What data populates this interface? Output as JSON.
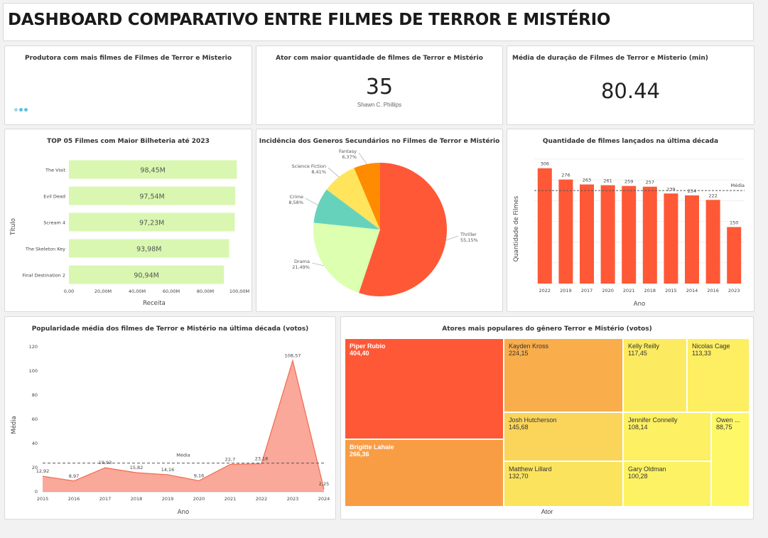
{
  "page": {
    "title": "DASHBOARD COMPARATIVO ENTRE FILMES DE TERROR E MISTÉRIO"
  },
  "kpis": {
    "producer": {
      "title": "Produtora com mais filmes de Filmes de Terror e Misterio"
    },
    "actor": {
      "title": "Ator com maior quantidade de filmes de Terror e Mistério",
      "value": "35",
      "subtitle": "Shawn C. Phillips"
    },
    "duration": {
      "title": "Média de duração de Filmes de Terror e Misterio (min)",
      "value": "80.44"
    }
  },
  "chart_data": [
    {
      "id": "top5",
      "type": "bar",
      "orientation": "horizontal",
      "title": "TOP 05 Filmes com Maior Bilheteria até 2023",
      "xlabel": "Receita",
      "ylabel": "Título",
      "categories": [
        "The Visit",
        "Evil Dead",
        "Scream 4",
        "The Skeleton Key",
        "Final Destination 2"
      ],
      "values": [
        98.45,
        97.54,
        97.23,
        93.98,
        90.94
      ],
      "value_labels": [
        "98,45M",
        "97,54M",
        "97,23M",
        "93,98M",
        "90,94M"
      ],
      "xticks": [
        "0,00",
        "20,00M",
        "40,00M",
        "60,00M",
        "80,00M",
        "100,00M"
      ],
      "xlim": [
        0,
        100
      ],
      "color": "#d9f7b0"
    },
    {
      "id": "genres",
      "type": "pie",
      "title": "Incidência dos Generos Secundários no Filmes de Terror e Mistério",
      "slices": [
        {
          "label": "Thriller",
          "value": 55.15,
          "pct": "55,15%",
          "color": "#fe5836"
        },
        {
          "label": "Drama",
          "value": 21.49,
          "pct": "21,49%",
          "color": "#dcffb0"
        },
        {
          "label": "Crime",
          "value": 8.58,
          "pct": "8,58%",
          "color": "#66d2bc"
        },
        {
          "label": "Science Fiction",
          "value": 8.41,
          "pct": "8,41%",
          "color": "#ffe45c"
        },
        {
          "label": "Fantasy",
          "value": 6.37,
          "pct": "6,37%",
          "color": "#ff8c00"
        }
      ]
    },
    {
      "id": "decade",
      "type": "bar",
      "title": "Quantidade de filmes lançados na última década",
      "xlabel": "Ano",
      "ylabel": "Quantidade de Filmes",
      "categories": [
        "2022",
        "2019",
        "2017",
        "2020",
        "2021",
        "2018",
        "2015",
        "2014",
        "2016",
        "2023"
      ],
      "values": [
        306,
        276,
        263,
        261,
        259,
        257,
        239,
        234,
        222,
        150
      ],
      "reference": {
        "label": "Média",
        "value": 246.7
      },
      "ylim": [
        0,
        330
      ],
      "color": "#fe5836"
    },
    {
      "id": "popularity",
      "type": "area",
      "title": "Popularidade média dos filmes de Terror e Mistério na última década (votos)",
      "xlabel": "Ano",
      "ylabel": "Média",
      "x": [
        "2015",
        "2016",
        "2017",
        "2018",
        "2019",
        "2020",
        "2021",
        "2022",
        "2023",
        "2024"
      ],
      "values": [
        12.92,
        8.97,
        19.93,
        15.82,
        14.16,
        9.16,
        22.7,
        23.18,
        108.57,
        2.25
      ],
      "value_labels": [
        "12,92",
        "8,97",
        "19,93",
        "15,82",
        "14,16",
        "9,16",
        "22,7",
        "23,18",
        "108,57",
        "2,25"
      ],
      "yticks": [
        "0",
        "20",
        "40",
        "60",
        "80",
        "100",
        "120"
      ],
      "ylim": [
        0,
        120
      ],
      "reference": {
        "label": "Média",
        "value": 23.77
      },
      "fill": "#f9a89a",
      "stroke": "#f26a4f"
    },
    {
      "id": "actors",
      "type": "treemap",
      "title": "Atores mais populares do gênero Terror e Mistério (votos)",
      "xlabel": "Ator",
      "items": [
        {
          "name": "Piper Rubio",
          "value": 404.4,
          "label": "404,40",
          "color": "#fe5836",
          "tone": "dark"
        },
        {
          "name": "Brigitte Lahaie",
          "value": 266.36,
          "label": "266,36",
          "color": "#f99d45",
          "tone": "dark"
        },
        {
          "name": "Kayden Kross",
          "value": 224.15,
          "label": "224,15",
          "color": "#f9ad4b",
          "tone": "light"
        },
        {
          "name": "Josh Hutcherson",
          "value": 145.68,
          "label": "145,68",
          "color": "#fbd55a",
          "tone": "light"
        },
        {
          "name": "Matthew Lillard",
          "value": 132.7,
          "label": "132,70",
          "color": "#fce35e",
          "tone": "light"
        },
        {
          "name": "Kelly Reilly",
          "value": 117.45,
          "label": "117,45",
          "color": "#fceb60",
          "tone": "light"
        },
        {
          "name": "Nicolas Cage",
          "value": 113.33,
          "label": "113,33",
          "color": "#fdee62",
          "tone": "light"
        },
        {
          "name": "Jennifer Connelly",
          "value": 108.14,
          "label": "108,14",
          "color": "#fdf063",
          "tone": "light"
        },
        {
          "name": "Gary Oldman",
          "value": 100.28,
          "label": "100,28",
          "color": "#fdf264",
          "tone": "light"
        },
        {
          "name": "Owen ...",
          "value": 88.75,
          "label": "88,75",
          "color": "#fef767",
          "tone": "light"
        }
      ]
    }
  ]
}
